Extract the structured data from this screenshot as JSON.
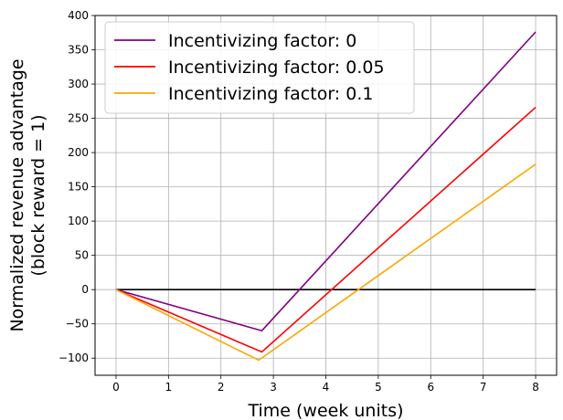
{
  "chart_data": {
    "type": "line",
    "xlabel": "Time (week units)",
    "ylabel_lines": [
      "Normalized revenue advantage",
      "(block reward = 1)"
    ],
    "xlim": [
      -0.4,
      8.4
    ],
    "ylim": [
      -125,
      400
    ],
    "xticks": [
      0,
      1,
      2,
      3,
      4,
      5,
      6,
      7,
      8
    ],
    "yticks": [
      -100,
      -50,
      0,
      50,
      100,
      150,
      200,
      250,
      300,
      350,
      400
    ],
    "xtick_labels": [
      "0",
      "1",
      "2",
      "3",
      "4",
      "5",
      "6",
      "7",
      "8"
    ],
    "ytick_labels": [
      "−100",
      "−50",
      "0",
      "50",
      "100",
      "150",
      "200",
      "250",
      "300",
      "350",
      "400"
    ],
    "grid": true,
    "legend_position": "top-left",
    "baseline": {
      "y": 0,
      "x": [
        0,
        8
      ],
      "color": "#000000"
    },
    "series": [
      {
        "name": "Incentivizing factor: 0",
        "color": "#800080",
        "x": [
          0,
          2.78,
          8
        ],
        "y": [
          0,
          -60,
          376
        ]
      },
      {
        "name": "Incentivizing factor: 0.05",
        "color": "#ff0000",
        "x": [
          0,
          2.78,
          8
        ],
        "y": [
          0,
          -91,
          266
        ]
      },
      {
        "name": "Incentivizing factor: 0.1",
        "color": "#ffa500",
        "x": [
          0,
          2.72,
          8
        ],
        "y": [
          0,
          -103,
          183
        ]
      }
    ]
  }
}
